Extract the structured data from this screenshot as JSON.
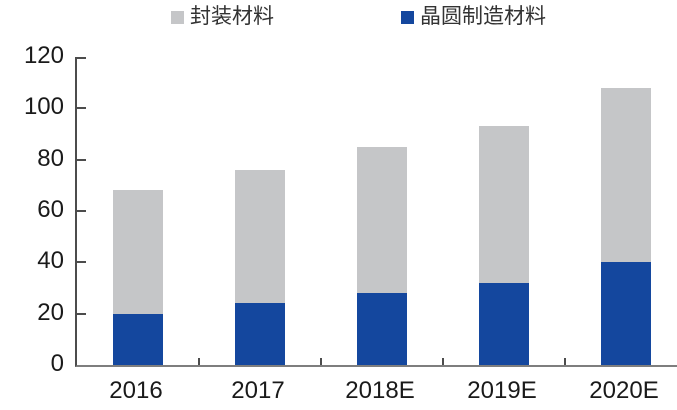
{
  "legend": {
    "items": [
      {
        "label": "封装材料",
        "color": "#c5c6c8"
      },
      {
        "label": "晶圆制造材料",
        "color": "#14479e"
      }
    ]
  },
  "chart_data": {
    "type": "bar",
    "stacked": true,
    "title": "",
    "xlabel": "",
    "ylabel": "",
    "categories": [
      "2016",
      "2017",
      "2018E",
      "2019E",
      "2020E"
    ],
    "series": [
      {
        "name": "晶圆制造材料",
        "color": "#14479e",
        "values": [
          20,
          24,
          28,
          32,
          40
        ]
      },
      {
        "name": "封装材料",
        "color": "#c5c6c8",
        "values": [
          48,
          52,
          57,
          61,
          68
        ]
      }
    ],
    "totals": [
      68,
      76,
      85,
      93,
      108
    ],
    "ylim": [
      0,
      120
    ],
    "yticks": [
      0,
      20,
      40,
      60,
      80,
      100,
      120
    ],
    "grid": false,
    "legend_position": "top"
  }
}
